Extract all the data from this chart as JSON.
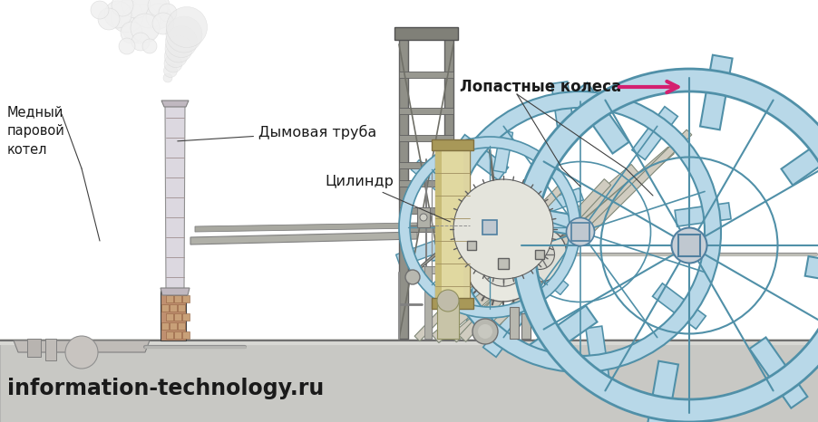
{
  "bg_color": "#ffffff",
  "label_chimney": "Дымовая труба",
  "label_cylinder": "Цилиндр",
  "label_wheel": "Лопастные колеса",
  "label_boiler": "Медный\nпаровой\nкотел",
  "watermark": "information-technology.ru",
  "arrow_color": "#d42070",
  "line_color": "#404040",
  "ground_color": "#c8c8c4",
  "chimney_fill": "#dcd8e0",
  "cylinder_fill": "#e0d8a0",
  "wheel_fill": "#b8d8e8",
  "brick_fill": "#c09878",
  "frame_fill": "#909090",
  "boiler_fill": "#c8c4c0",
  "gear_fill": "#909090",
  "smoke_fill": "#e8e8e8"
}
